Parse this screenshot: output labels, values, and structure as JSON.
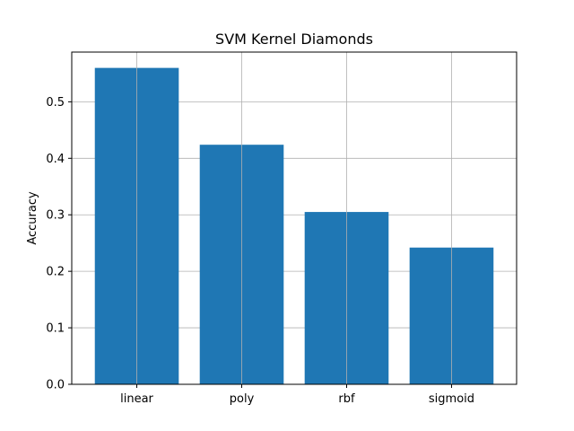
{
  "chart_data": {
    "type": "bar",
    "title": "SVM Kernel Diamonds",
    "xlabel": "",
    "ylabel": "Accuracy",
    "categories": [
      "linear",
      "poly",
      "rbf",
      "sigmoid"
    ],
    "values": [
      0.56,
      0.424,
      0.305,
      0.242
    ],
    "ylim": [
      0,
      0.588
    ],
    "yticks": [
      0.0,
      0.1,
      0.2,
      0.3,
      0.4,
      0.5
    ],
    "ytick_labels": [
      "0.0",
      "0.1",
      "0.2",
      "0.3",
      "0.4",
      "0.5"
    ],
    "grid": true,
    "legend": "none",
    "bar_color": "#1f77b4"
  }
}
